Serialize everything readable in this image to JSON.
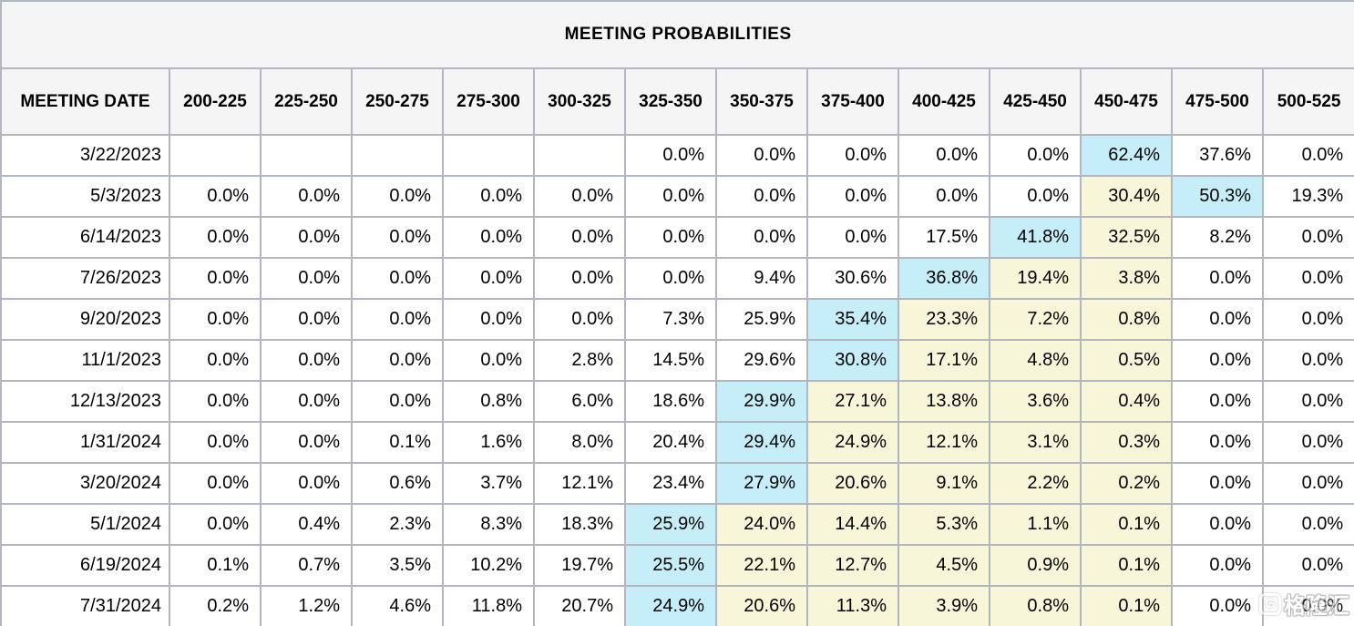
{
  "page": {
    "title": "MEETING PROBABILITIES"
  },
  "chart_data": {
    "type": "table",
    "title": "MEETING PROBABILITIES",
    "columns": [
      "MEETING DATE",
      "200-225",
      "225-250",
      "250-275",
      "275-300",
      "300-325",
      "325-350",
      "350-375",
      "375-400",
      "400-425",
      "425-450",
      "450-475",
      "475-500",
      "500-525"
    ],
    "rows": [
      {
        "date": "3/22/2023",
        "values": [
          "",
          "",
          "",
          "",
          "",
          "0.0%",
          "0.0%",
          "0.0%",
          "0.0%",
          "0.0%",
          "62.4%",
          "37.6%",
          "0.0%"
        ],
        "max_index": 10,
        "band_indices": []
      },
      {
        "date": "5/3/2023",
        "values": [
          "0.0%",
          "0.0%",
          "0.0%",
          "0.0%",
          "0.0%",
          "0.0%",
          "0.0%",
          "0.0%",
          "0.0%",
          "0.0%",
          "30.4%",
          "50.3%",
          "19.3%"
        ],
        "max_index": 11,
        "band_indices": [
          10
        ]
      },
      {
        "date": "6/14/2023",
        "values": [
          "0.0%",
          "0.0%",
          "0.0%",
          "0.0%",
          "0.0%",
          "0.0%",
          "0.0%",
          "0.0%",
          "17.5%",
          "41.8%",
          "32.5%",
          "8.2%",
          "0.0%"
        ],
        "max_index": 9,
        "band_indices": [
          10
        ]
      },
      {
        "date": "7/26/2023",
        "values": [
          "0.0%",
          "0.0%",
          "0.0%",
          "0.0%",
          "0.0%",
          "0.0%",
          "9.4%",
          "30.6%",
          "36.8%",
          "19.4%",
          "3.8%",
          "0.0%",
          "0.0%"
        ],
        "max_index": 8,
        "band_indices": [
          9,
          10
        ]
      },
      {
        "date": "9/20/2023",
        "values": [
          "0.0%",
          "0.0%",
          "0.0%",
          "0.0%",
          "0.0%",
          "7.3%",
          "25.9%",
          "35.4%",
          "23.3%",
          "7.2%",
          "0.8%",
          "0.0%",
          "0.0%"
        ],
        "max_index": 7,
        "band_indices": [
          8,
          9,
          10
        ]
      },
      {
        "date": "11/1/2023",
        "values": [
          "0.0%",
          "0.0%",
          "0.0%",
          "0.0%",
          "2.8%",
          "14.5%",
          "29.6%",
          "30.8%",
          "17.1%",
          "4.8%",
          "0.5%",
          "0.0%",
          "0.0%"
        ],
        "max_index": 7,
        "band_indices": [
          8,
          9,
          10
        ]
      },
      {
        "date": "12/13/2023",
        "values": [
          "0.0%",
          "0.0%",
          "0.0%",
          "0.8%",
          "6.0%",
          "18.6%",
          "29.9%",
          "27.1%",
          "13.8%",
          "3.6%",
          "0.4%",
          "0.0%",
          "0.0%"
        ],
        "max_index": 6,
        "band_indices": [
          7,
          8,
          9,
          10
        ]
      },
      {
        "date": "1/31/2024",
        "values": [
          "0.0%",
          "0.0%",
          "0.1%",
          "1.6%",
          "8.0%",
          "20.4%",
          "29.4%",
          "24.9%",
          "12.1%",
          "3.1%",
          "0.3%",
          "0.0%",
          "0.0%"
        ],
        "max_index": 6,
        "band_indices": [
          7,
          8,
          9,
          10
        ]
      },
      {
        "date": "3/20/2024",
        "values": [
          "0.0%",
          "0.0%",
          "0.6%",
          "3.7%",
          "12.1%",
          "23.4%",
          "27.9%",
          "20.6%",
          "9.1%",
          "2.2%",
          "0.2%",
          "0.0%",
          "0.0%"
        ],
        "max_index": 6,
        "band_indices": [
          7,
          8,
          9,
          10
        ]
      },
      {
        "date": "5/1/2024",
        "values": [
          "0.0%",
          "0.4%",
          "2.3%",
          "8.3%",
          "18.3%",
          "25.9%",
          "24.0%",
          "14.4%",
          "5.3%",
          "1.1%",
          "0.1%",
          "0.0%",
          "0.0%"
        ],
        "max_index": 5,
        "band_indices": [
          6,
          7,
          8,
          9,
          10
        ]
      },
      {
        "date": "6/19/2024",
        "values": [
          "0.1%",
          "0.7%",
          "3.5%",
          "10.2%",
          "19.7%",
          "25.5%",
          "22.1%",
          "12.7%",
          "4.5%",
          "0.9%",
          "0.1%",
          "0.0%",
          "0.0%"
        ],
        "max_index": 5,
        "band_indices": [
          6,
          7,
          8,
          9,
          10
        ]
      },
      {
        "date": "7/31/2024",
        "values": [
          "0.2%",
          "1.2%",
          "4.6%",
          "11.8%",
          "20.7%",
          "24.9%",
          "20.6%",
          "11.3%",
          "3.9%",
          "0.8%",
          "0.1%",
          "0.0%",
          "0.0%"
        ],
        "max_index": 5,
        "band_indices": [
          6,
          7,
          8,
          9,
          10
        ]
      }
    ],
    "legend": {
      "max_highlight_color": "#c5eef8",
      "band_highlight_color": "#f7f6d9"
    },
    "layout": {
      "grid": "on",
      "header_background": "#f5f5f5",
      "border_color": "#b3b6bf"
    }
  },
  "watermark": {
    "logo": "G",
    "text": "格隆汇"
  }
}
